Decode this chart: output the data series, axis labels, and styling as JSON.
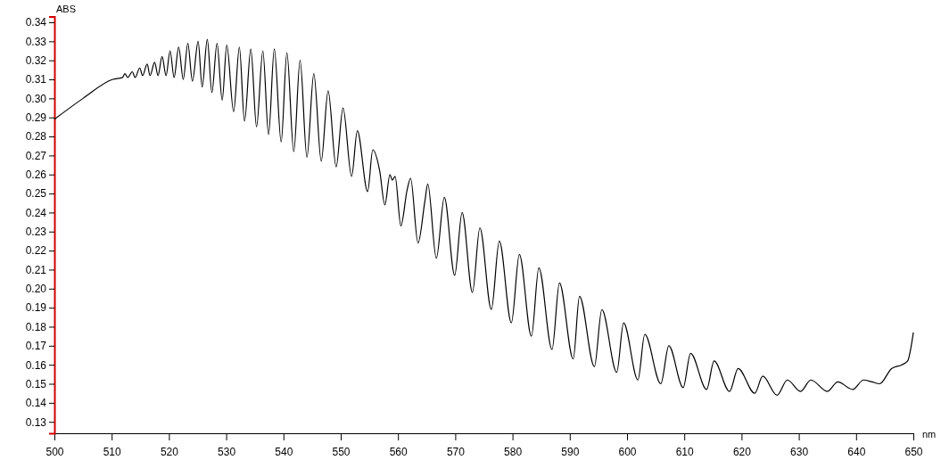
{
  "chart_data": {
    "type": "line",
    "xlabel": "nm",
    "ylabel": "ABS",
    "xlim": [
      500,
      650
    ],
    "ylim": [
      0.124,
      0.343
    ],
    "xticks": [
      500,
      510,
      520,
      530,
      540,
      550,
      560,
      570,
      580,
      590,
      600,
      610,
      620,
      630,
      640,
      650
    ],
    "yticks": [
      {
        "value": 0.13,
        "label": "0.13"
      },
      {
        "value": 0.14,
        "label": "0.14"
      },
      {
        "value": 0.15,
        "label": "0.15"
      },
      {
        "value": 0.16,
        "label": "0.16"
      },
      {
        "value": 0.17,
        "label": "0.17"
      },
      {
        "value": 0.18,
        "label": "0.18"
      },
      {
        "value": 0.19,
        "label": "0.19"
      },
      {
        "value": 0.2,
        "label": "0.20"
      },
      {
        "value": 0.21,
        "label": "0.21"
      },
      {
        "value": 0.22,
        "label": "0.22"
      },
      {
        "value": 0.23,
        "label": "0.23"
      },
      {
        "value": 0.24,
        "label": "0.24"
      },
      {
        "value": 0.25,
        "label": "0.25"
      },
      {
        "value": 0.26,
        "label": "0.26"
      },
      {
        "value": 0.27,
        "label": "0.27"
      },
      {
        "value": 0.28,
        "label": "0.28"
      },
      {
        "value": 0.29,
        "label": "0.29"
      },
      {
        "value": 0.3,
        "label": "0.30"
      },
      {
        "value": 0.31,
        "label": "0.31"
      },
      {
        "value": 0.32,
        "label": "0.32"
      },
      {
        "value": 0.33,
        "label": "0.33"
      },
      {
        "value": 0.34,
        "label": "0.34"
      }
    ],
    "grid": false,
    "marker": "none",
    "line_style": "solid",
    "series": [
      {
        "color": "#000000",
        "x": [
          500,
          505,
          510.2,
          511.9,
          512.3,
          512.8,
          513.6,
          514.1,
          514.9,
          515.4,
          516.2,
          516.7,
          517.5,
          518.1,
          518.8,
          519.5,
          520.2,
          520.9,
          521.7,
          522.5,
          523.3,
          524.1,
          525.1,
          525.8,
          526.7,
          527.5,
          528.4,
          529.3,
          530.1,
          531.3,
          532.3,
          533.2,
          534.3,
          535.3,
          536.4,
          537.4,
          538.4,
          539.6,
          540.6,
          541.8,
          542.9,
          544.1,
          545.3,
          546.6,
          547.8,
          549.2,
          550.4,
          551.9,
          552.9,
          554.7,
          555.6,
          556.8,
          557.7,
          558.6,
          559.0,
          559.5,
          560.5,
          561.6,
          562.2,
          563.5,
          564.7,
          565.2,
          566.7,
          568.1,
          569.9,
          571.2,
          573.0,
          574.3,
          576.3,
          577.7,
          579.8,
          581.2,
          583.3,
          584.6,
          586.9,
          588.2,
          590.6,
          591.7,
          594.3,
          595.6,
          598.2,
          599.4,
          601.9,
          603.1,
          605.9,
          607.3,
          609.8,
          611.1,
          613.9,
          615.2,
          617.9,
          619.4,
          622.3,
          623.7,
          626.2,
          628.0,
          630.3,
          632.1,
          635.0,
          636.8,
          639.4,
          641.3,
          642.8,
          644.1,
          646.2,
          648.0,
          649.0,
          650
        ],
        "values": [
          0.289,
          0.3,
          0.31,
          0.311,
          0.313,
          0.311,
          0.314,
          0.311,
          0.316,
          0.312,
          0.318,
          0.312,
          0.319,
          0.312,
          0.322,
          0.312,
          0.325,
          0.311,
          0.327,
          0.31,
          0.329,
          0.309,
          0.33,
          0.306,
          0.331,
          0.303,
          0.329,
          0.299,
          0.328,
          0.293,
          0.327,
          0.288,
          0.326,
          0.285,
          0.325,
          0.281,
          0.326,
          0.277,
          0.324,
          0.272,
          0.32,
          0.269,
          0.313,
          0.267,
          0.304,
          0.264,
          0.295,
          0.259,
          0.283,
          0.251,
          0.273,
          0.262,
          0.244,
          0.26,
          0.257,
          0.259,
          0.233,
          0.252,
          0.258,
          0.224,
          0.246,
          0.255,
          0.216,
          0.248,
          0.207,
          0.24,
          0.198,
          0.232,
          0.189,
          0.225,
          0.182,
          0.218,
          0.175,
          0.211,
          0.168,
          0.203,
          0.163,
          0.196,
          0.159,
          0.189,
          0.156,
          0.182,
          0.152,
          0.176,
          0.15,
          0.17,
          0.148,
          0.166,
          0.147,
          0.162,
          0.146,
          0.158,
          0.145,
          0.154,
          0.144,
          0.152,
          0.146,
          0.152,
          0.146,
          0.151,
          0.147,
          0.152,
          0.151,
          0.15,
          0.158,
          0.16,
          0.162,
          0.177
        ]
      }
    ]
  }
}
